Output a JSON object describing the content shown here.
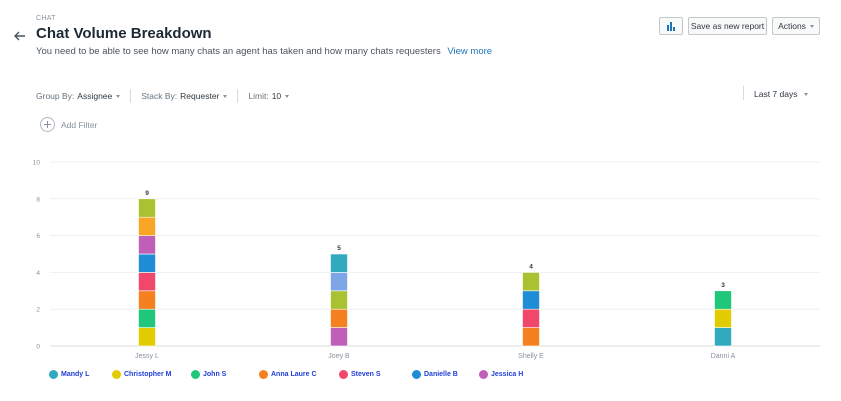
{
  "header": {
    "eyebrow": "CHAT",
    "title": "Chat Volume Breakdown",
    "subtitle": "You need to be able to see how many chats an agent has taken and how many chats requesters",
    "view_more": "View more"
  },
  "toolbar": {
    "save_label": "Save as new report",
    "actions_label": "Actions"
  },
  "filters": {
    "group_by_label": "Group By:",
    "group_by_value": "Assignee",
    "stack_by_label": "Stack By:",
    "stack_by_value": "Requester",
    "limit_label": "Limit:",
    "limit_value": "10",
    "date_range": "Last 7 days",
    "add_filter": "Add Filter"
  },
  "colors": {
    "Mandy L": "#30aabc",
    "Christopher M": "#e0cc00",
    "John S": "#1fc77a",
    "Anna Laure C": "#f5801f",
    "Steven S": "#f0476a",
    "Danielle B": "#1f8dd6",
    "Jessica H": "#c05fb8",
    "extra_green": "#a8c232",
    "extra_orange": "#f9a525",
    "extra_blue": "#7ea6e6"
  },
  "chart_data": {
    "type": "bar",
    "stacked": true,
    "ylim": [
      0,
      10
    ],
    "yticks": [
      0,
      2,
      4,
      6,
      8,
      10
    ],
    "grid": true,
    "legend_position": "bottom",
    "categories": [
      "Jessy L",
      "Joey B",
      "Shelly E",
      "Danni A"
    ],
    "totals": [
      9,
      5,
      4,
      3
    ],
    "stacks": [
      [
        "Christopher M",
        "John S",
        "Anna Laure C",
        "Steven S",
        "Danielle B",
        "Jessica H",
        "extra_orange",
        "extra_green"
      ],
      [
        "Jessica H",
        "Anna Laure C",
        "extra_green",
        "extra_blue",
        "Mandy L"
      ],
      [
        "Anna Laure C",
        "Steven S",
        "Danielle B",
        "extra_green"
      ],
      [
        "Mandy L",
        "Christopher M",
        "John S"
      ]
    ],
    "legend": [
      "Mandy L",
      "Christopher M",
      "John S",
      "Anna Laure C",
      "Steven S",
      "Danielle B",
      "Jessica H"
    ]
  }
}
